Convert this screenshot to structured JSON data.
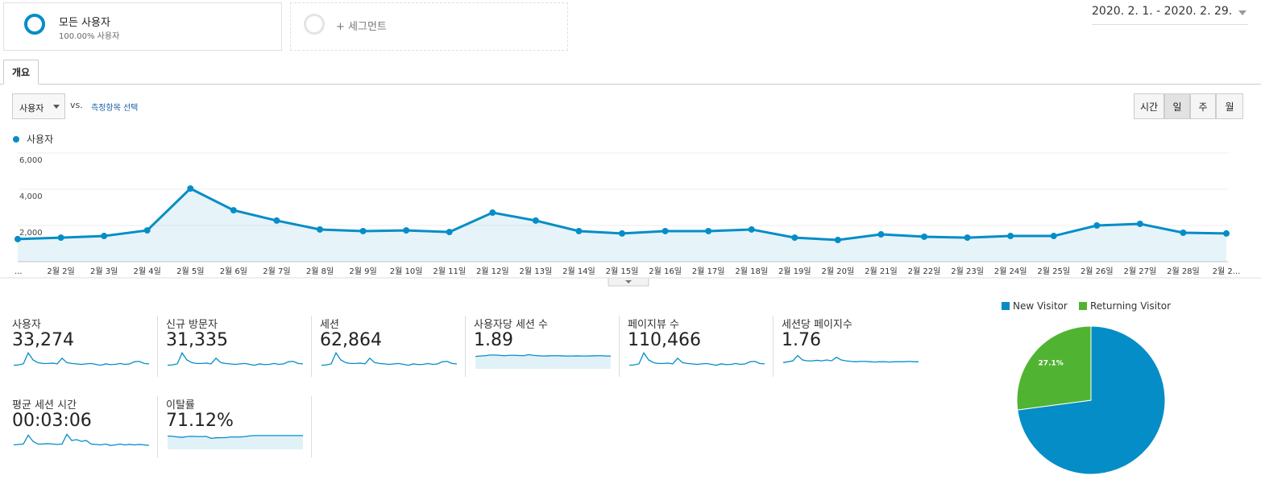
{
  "segments": {
    "active": {
      "name": "모든 사용자",
      "share": "100.00% 사용자"
    },
    "add": "+ 세그먼트"
  },
  "date_range": "2020. 2. 1. - 2020. 2. 29.",
  "tab": "개요",
  "controls": {
    "metric": "사용자",
    "vs": "vs.",
    "select_metric": "측정항목 선택",
    "intervals": [
      "시간",
      "일",
      "주",
      "월"
    ],
    "selected_interval": 1
  },
  "chart_data": [
    {
      "type": "line",
      "categories": [
        "...",
        "2월 2일",
        "2월 3일",
        "2월 4일",
        "2월 5일",
        "2월 6일",
        "2월 7일",
        "2월 8일",
        "2월 9일",
        "2월 10일",
        "2월 11일",
        "2월 12일",
        "2월 13일",
        "2월 14일",
        "2월 15일",
        "2월 16일",
        "2월 17일",
        "2월 18일",
        "2월 19일",
        "2월 20일",
        "2월 21일",
        "2월 22일",
        "2월 23일",
        "2월 24일",
        "2월 25일",
        "2월 26일",
        "2월 27일",
        "2월 28일",
        "2월 2..."
      ],
      "series": [
        {
          "name": "사용자",
          "color": "#058dc7",
          "values": [
            1250,
            1330,
            1420,
            1730,
            4040,
            2840,
            2270,
            1780,
            1690,
            1730,
            1640,
            2710,
            2270,
            1690,
            1560,
            1690,
            1690,
            1780,
            1330,
            1200,
            1510,
            1380,
            1330,
            1420,
            1420,
            2000,
            2090,
            1600,
            1560
          ]
        }
      ],
      "ylim": [
        0,
        6000
      ],
      "yticks": [
        {
          "value": 2000,
          "label": "2,000"
        },
        {
          "value": 4000,
          "label": "4,000"
        },
        {
          "value": 6000,
          "label": "6,000"
        }
      ],
      "grid": true
    },
    {
      "type": "pie",
      "categories": [
        "New Visitor",
        "Returning Visitor"
      ],
      "values": [
        72.9,
        27.1
      ],
      "value_labels": [
        "72.9%",
        "27.1%"
      ],
      "colors": [
        "#058dc7",
        "#50b432"
      ],
      "legend": "top"
    }
  ],
  "scorecards": [
    {
      "label": "사용자",
      "value": "33,274"
    },
    {
      "label": "신규 방문자",
      "value": "31,335"
    },
    {
      "label": "세션",
      "value": "62,864"
    },
    {
      "label": "사용자당 세션 수",
      "value": "1.89"
    },
    {
      "label": "페이지뷰 수",
      "value": "110,466"
    },
    {
      "label": "세션당 페이지수",
      "value": "1.76"
    },
    {
      "label": "평균 세션 시간",
      "value": "00:03:06"
    },
    {
      "label": "이탈률",
      "value": "71.12%"
    }
  ]
}
